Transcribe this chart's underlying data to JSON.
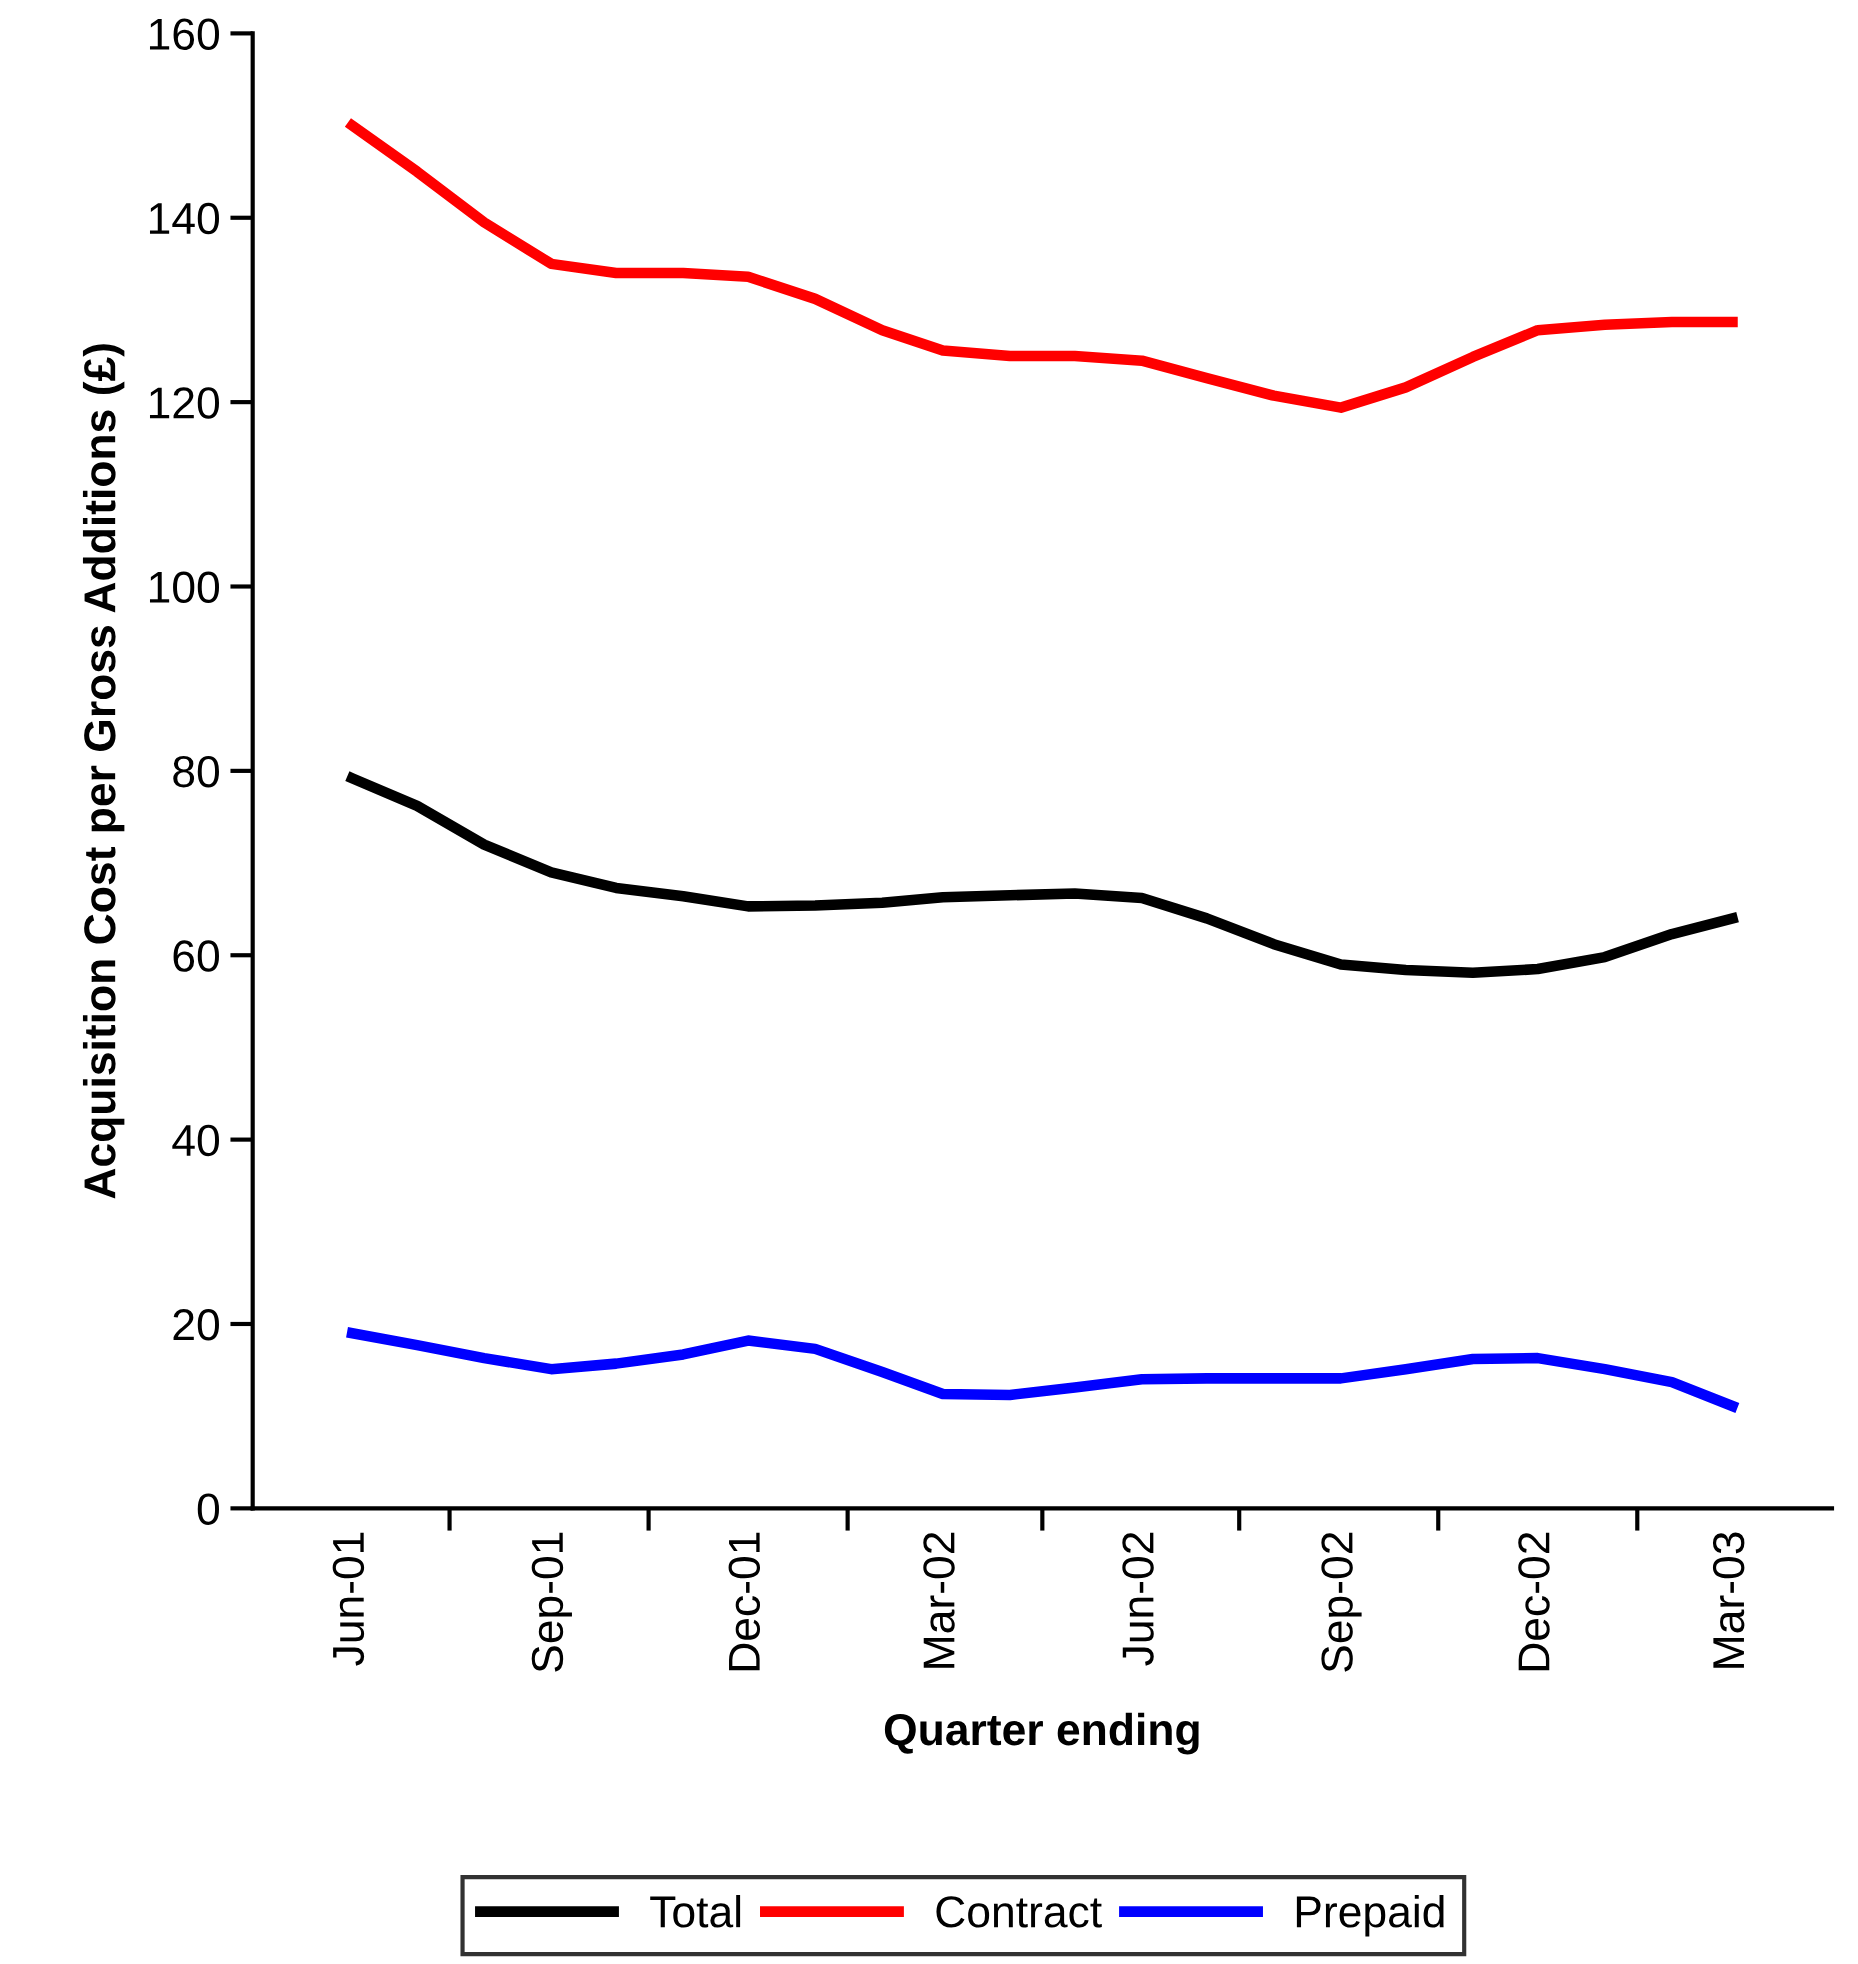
{
  "chart_data": {
    "type": "line",
    "xlabel": "Quarter ending",
    "ylabel": "Acquisition Cost per Gross Additions (£)",
    "x": [
      "2001-06",
      "2001-07",
      "2001-08",
      "2001-09",
      "2001-10",
      "2001-11",
      "2001-12",
      "2002-01",
      "2002-02",
      "2002-03",
      "2002-04",
      "2002-05",
      "2002-06",
      "2002-07",
      "2002-08",
      "2002-09",
      "2002-10",
      "2002-11",
      "2002-12",
      "2003-01",
      "2003-02",
      "2003-03"
    ],
    "series": [
      {
        "name": "Total",
        "color": "#000000",
        "values": [
          79.2,
          76.2,
          72.0,
          69.0,
          67.3,
          66.4,
          65.3,
          65.4,
          65.7,
          66.3,
          66.5,
          66.7,
          66.2,
          64.0,
          61.2,
          59.0,
          58.4,
          58.1,
          58.5,
          59.8,
          62.3,
          64.0
        ]
      },
      {
        "name": "Contract",
        "color": "#ff0000",
        "values": [
          150,
          145,
          139.5,
          135,
          134,
          134,
          133.6,
          131.2,
          127.8,
          125.6,
          125,
          125,
          124.5,
          122.6,
          120.7,
          119.4,
          121.6,
          124.9,
          127.8,
          128.4,
          128.7,
          128.7
        ]
      },
      {
        "name": "Prepaid",
        "color": "#0000ff",
        "values": [
          19.0,
          17.7,
          16.3,
          15.1,
          15.7,
          16.7,
          18.2,
          17.3,
          14.8,
          12.4,
          12.3,
          13.1,
          14.0,
          14.1,
          14.1,
          14.1,
          15.1,
          16.2,
          16.3,
          15.1,
          13.7,
          11.1
        ]
      }
    ],
    "xlim": [
      "2001-04-16",
      "2003-04-16"
    ],
    "xticks": [
      {
        "value": "2001-06",
        "label": "Jun-01"
      },
      {
        "value": "2001-09",
        "label": "Sep-01"
      },
      {
        "value": "2001-12",
        "label": "Dec-01"
      },
      {
        "value": "2002-03",
        "label": "Mar-02"
      },
      {
        "value": "2002-06",
        "label": "Jun-02"
      },
      {
        "value": "2002-09",
        "label": "Sep-02"
      },
      {
        "value": "2002-12",
        "label": "Dec-02"
      },
      {
        "value": "2003-03",
        "label": "Mar-03"
      },
      {
        "value": "2001-07-16",
        "label": null
      },
      {
        "value": "2001-10-16",
        "label": null
      },
      {
        "value": "2002-01-16",
        "label": null
      },
      {
        "value": "2002-04-16",
        "label": null
      },
      {
        "value": "2002-07-16",
        "label": null
      },
      {
        "value": "2002-10-16",
        "label": null
      },
      {
        "value": "2003-01-16",
        "label": null
      }
    ],
    "ylim": [
      0,
      160
    ],
    "yticks": [
      0,
      20,
      40,
      60,
      80,
      100,
      120,
      140,
      160
    ],
    "grid": false,
    "legend": "bottom",
    "marker": "none",
    "line_style": "solid"
  }
}
